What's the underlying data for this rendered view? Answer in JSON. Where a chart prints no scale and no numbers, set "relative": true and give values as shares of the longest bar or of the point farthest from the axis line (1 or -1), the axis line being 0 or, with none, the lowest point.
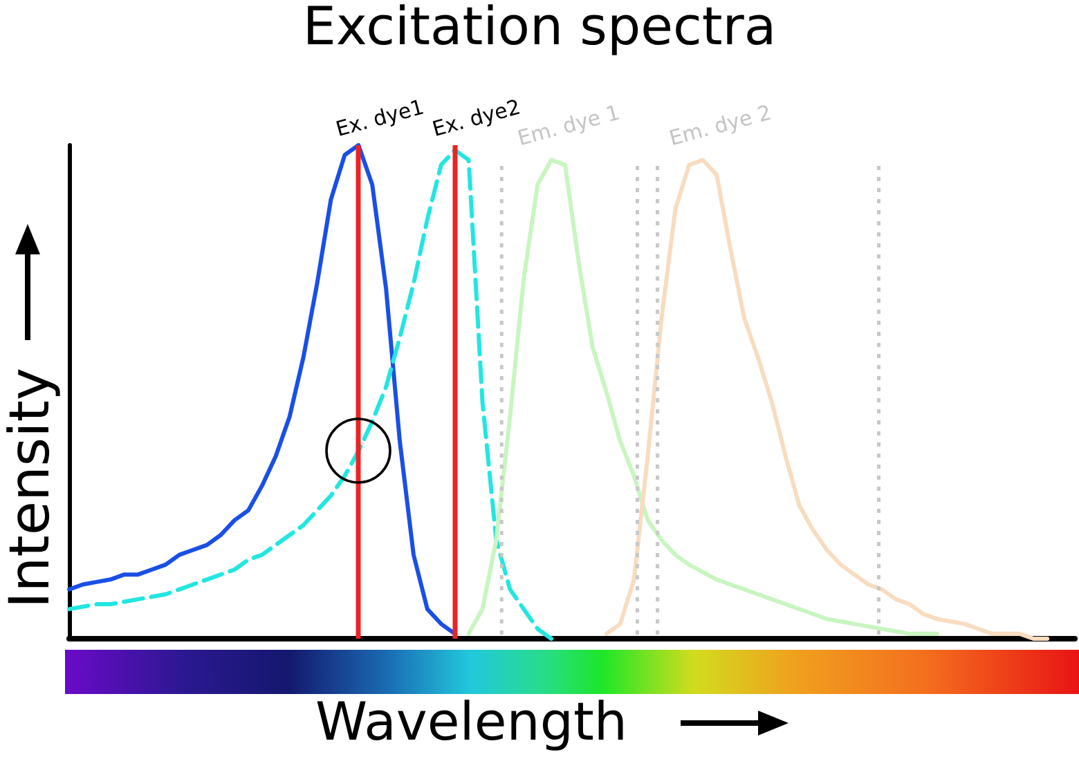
{
  "chart_data": {
    "type": "line",
    "title": "Excitation spectra",
    "xlabel": "Wavelength",
    "ylabel": "Intensity",
    "relative": true,
    "grid": false,
    "legend": false,
    "marker": "none",
    "categories": [
      null,
      null,
      null,
      null,
      null,
      null,
      null,
      null,
      null,
      null,
      null,
      null,
      null,
      null,
      null,
      null,
      null,
      null,
      null,
      null,
      null,
      null,
      null,
      null,
      null,
      null,
      null,
      null,
      null,
      null,
      null,
      null,
      null,
      null,
      null,
      null,
      null,
      null,
      null,
      null,
      null,
      null,
      null,
      null,
      null,
      null,
      null,
      null,
      null,
      null,
      null,
      null,
      null,
      null,
      null,
      null,
      null,
      null,
      null,
      null,
      null,
      null,
      null,
      null,
      null,
      null,
      null,
      null,
      null,
      null,
      null,
      null,
      null,
      null
    ],
    "series": [
      {
        "color": "#1a4fe6",
        "line_style": "solid",
        "values": [
          0.1,
          0.11,
          0.115,
          0.12,
          0.13,
          0.13,
          0.14,
          0.15,
          0.17,
          0.18,
          0.19,
          0.21,
          0.24,
          0.26,
          0.31,
          0.37,
          0.45,
          0.57,
          0.72,
          0.89,
          0.98,
          1,
          0.92,
          0.71,
          0.4,
          0.17,
          0.06,
          0.03,
          0.01,
          null,
          null,
          null,
          null,
          null,
          null,
          null,
          null,
          null,
          null,
          null,
          null,
          null,
          null,
          null,
          null,
          null,
          null,
          null,
          null,
          null,
          null,
          null,
          null,
          null,
          null,
          null,
          null,
          null,
          null,
          null,
          null,
          null,
          null,
          null,
          null,
          null,
          null,
          null,
          null,
          null,
          null,
          null,
          null,
          null
        ]
      },
      {
        "color": "#22e6e0",
        "line_style": "dashed",
        "values": [
          0.06,
          0.065,
          0.07,
          0.07,
          0.075,
          0.08,
          0.085,
          0.09,
          0.1,
          0.11,
          0.12,
          0.13,
          0.14,
          0.16,
          0.17,
          0.19,
          0.21,
          0.23,
          0.26,
          0.29,
          0.33,
          0.38,
          0.44,
          0.51,
          0.61,
          0.72,
          0.85,
          0.96,
          0.99,
          0.97,
          0.48,
          0.2,
          0.1,
          0.06,
          0.02,
          0,
          null,
          null,
          null,
          null,
          null,
          null,
          null,
          null,
          null,
          null,
          null,
          null,
          null,
          null,
          null,
          null,
          null,
          null,
          null,
          null,
          null,
          null,
          null,
          null,
          null,
          null,
          null,
          null,
          null,
          null,
          null,
          null,
          null,
          null,
          null,
          null,
          null,
          null
        ]
      },
      {
        "name": "Em. dye 1",
        "color": "#c8f5c0",
        "line_style": "solid",
        "values": [
          null,
          null,
          null,
          null,
          null,
          null,
          null,
          null,
          null,
          null,
          null,
          null,
          null,
          null,
          null,
          null,
          null,
          null,
          null,
          null,
          null,
          null,
          null,
          null,
          null,
          null,
          null,
          null,
          null,
          0.01,
          0.06,
          0.2,
          0.45,
          0.73,
          0.92,
          0.97,
          0.96,
          0.76,
          0.59,
          0.5,
          0.4,
          0.33,
          0.24,
          0.2,
          0.17,
          0.15,
          0.135,
          0.12,
          0.11,
          0.1,
          0.09,
          0.08,
          0.07,
          0.06,
          0.05,
          0.04,
          0.035,
          0.03,
          0.025,
          0.02,
          0.015,
          0.01,
          0.01,
          0.01,
          null,
          null,
          null,
          null,
          null,
          null,
          null,
          null,
          null,
          null
        ]
      },
      {
        "name": "Em. dye 2",
        "color": "#f8dcc0",
        "line_style": "solid",
        "values": [
          null,
          null,
          null,
          null,
          null,
          null,
          null,
          null,
          null,
          null,
          null,
          null,
          null,
          null,
          null,
          null,
          null,
          null,
          null,
          null,
          null,
          null,
          null,
          null,
          null,
          null,
          null,
          null,
          null,
          null,
          null,
          null,
          null,
          null,
          null,
          null,
          null,
          null,
          null,
          0.01,
          0.03,
          0.12,
          0.37,
          0.65,
          0.87,
          0.96,
          0.97,
          0.94,
          0.79,
          0.65,
          0.57,
          0.48,
          0.37,
          0.27,
          0.22,
          0.18,
          0.15,
          0.13,
          0.11,
          0.1,
          0.08,
          0.07,
          0.05,
          0.04,
          0.035,
          0.03,
          0.02,
          0.01,
          0.01,
          0.01,
          0,
          0,
          null,
          null
        ]
      }
    ],
    "annotations": [
      "Ex. dye1",
      "Ex. dye2"
    ]
  }
}
